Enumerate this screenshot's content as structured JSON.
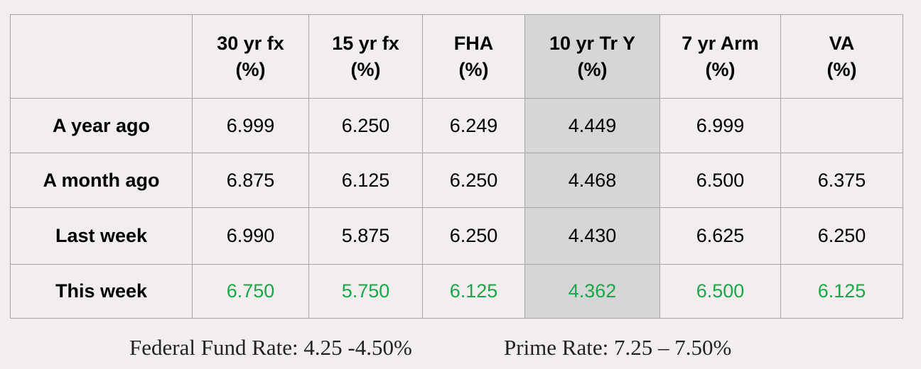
{
  "table": {
    "headers": [
      {
        "line1": "",
        "line2": ""
      },
      {
        "line1": "30 yr fx",
        "line2": "(%)"
      },
      {
        "line1": "15 yr fx",
        "line2": "(%)"
      },
      {
        "line1": "FHA",
        "line2": "(%)"
      },
      {
        "line1": "10 yr Tr Y",
        "line2": "(%)"
      },
      {
        "line1": "7 yr Arm",
        "line2": "(%)"
      },
      {
        "line1": "VA",
        "line2": "(%)"
      }
    ],
    "rows": [
      {
        "label": "A year ago",
        "values": [
          "6.999",
          "6.250",
          "6.249",
          "4.449",
          "6.999",
          ""
        ]
      },
      {
        "label": "A month ago",
        "values": [
          "6.875",
          "6.125",
          "6.250",
          "4.468",
          "6.500",
          "6.375"
        ]
      },
      {
        "label": "Last week",
        "values": [
          "6.990",
          "5.875",
          "6.250",
          "4.430",
          "6.625",
          "6.250"
        ]
      },
      {
        "label": "This week",
        "values": [
          "6.750",
          "5.750",
          "6.125",
          "4.362",
          "6.500",
          "6.125"
        ]
      }
    ]
  },
  "footer": {
    "federal_fund_rate": "Federal Fund Rate: 4.25 -4.50%",
    "prime_rate": "Prime Rate: 7.25 – 7.50%"
  },
  "colors": {
    "background": "#f1eeed",
    "highlight_column": "#d6d6d6",
    "current_week_text": "#1aa64a",
    "border": "#a6a4a4"
  }
}
